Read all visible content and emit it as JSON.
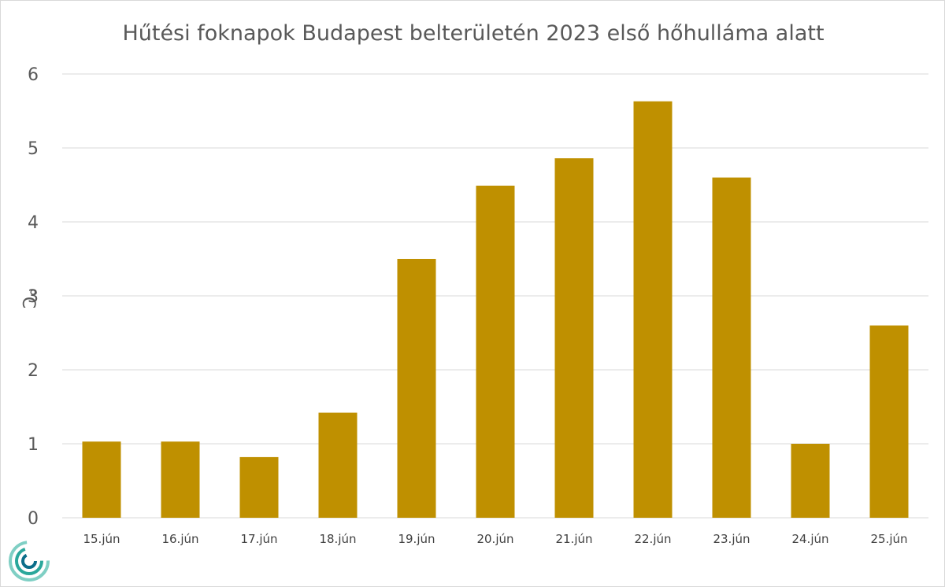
{
  "chart_data": {
    "type": "bar",
    "title": "Hűtési foknapok Budapest belterületén 2023 első hőhulláma alatt",
    "xlabel": "",
    "ylabel": "°C",
    "categories": [
      "15.jún",
      "16.jún",
      "17.jún",
      "18.jún",
      "19.jún",
      "20.jún",
      "21.jún",
      "22.jún",
      "23.jún",
      "24.jún",
      "25.jún"
    ],
    "series": [
      {
        "values": [
          1.03,
          1.03,
          0.82,
          1.42,
          3.5,
          4.49,
          4.86,
          5.63,
          4.6,
          1.0,
          2.6
        ],
        "color": "#bf9000"
      }
    ],
    "ylim": [
      0,
      6
    ],
    "yticks": [
      0,
      1,
      2,
      3,
      4,
      5,
      6
    ],
    "grid": true,
    "legend": "none"
  },
  "logo": {
    "icon": "spiral-logo-icon",
    "colors": [
      "#7fcfc4",
      "#2aa79b",
      "#0b6e8a"
    ]
  }
}
